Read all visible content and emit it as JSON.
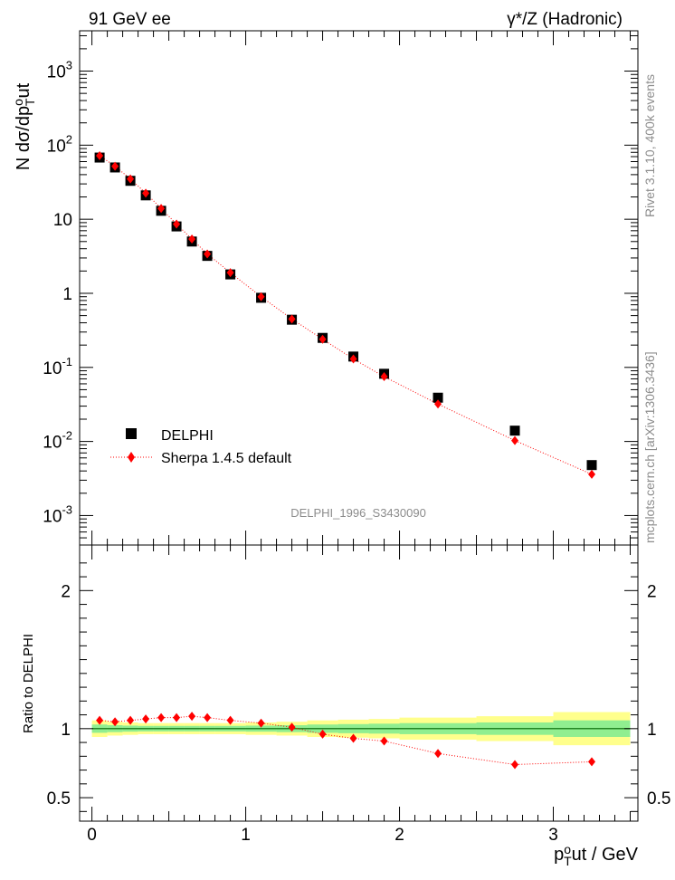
{
  "header": {
    "left": "91 GeV ee",
    "right": "γ*/Z (Hadronic)"
  },
  "side_text": {
    "rivet": "Rivet 3.1.10,  400k events",
    "mcplots": "mcplots.cern.ch [arXiv:1306.3436]"
  },
  "watermark": "DELPHI_1996_S3430090",
  "colors": {
    "data_marker": "#000000",
    "mc_line": "#ff0000",
    "mc_marker": "#ff0000",
    "band_inner": "#90ee90",
    "band_outer": "#ffff8c"
  },
  "chart_data": [
    {
      "type": "scatter",
      "panel": "main",
      "ylabel": "N dσ/dp_T^out",
      "yscale": "log",
      "ylim": [
        0.0004,
        3500
      ],
      "xlim": [
        -0.08,
        3.55
      ],
      "ytick_labels": [
        "10^-3",
        "10^-2",
        "10^-1",
        "1",
        "10",
        "10^2",
        "10^3"
      ],
      "legend_position": "lower-left",
      "series": [
        {
          "name": "DELPHI",
          "marker": "square",
          "x": [
            0.05,
            0.15,
            0.25,
            0.35,
            0.45,
            0.55,
            0.65,
            0.75,
            0.9,
            1.1,
            1.3,
            1.5,
            1.7,
            1.9,
            2.25,
            2.75,
            3.25
          ],
          "y": [
            68,
            50,
            33,
            21,
            13,
            8.0,
            5.0,
            3.2,
            1.8,
            0.87,
            0.44,
            0.25,
            0.14,
            0.082,
            0.039,
            0.014,
            0.0048
          ]
        },
        {
          "name": "Sherpa 1.4.5 default",
          "marker": "diamond",
          "line": "dotted",
          "x": [
            0.05,
            0.15,
            0.25,
            0.35,
            0.45,
            0.55,
            0.65,
            0.75,
            0.9,
            1.1,
            1.3,
            1.5,
            1.7,
            1.9,
            2.25,
            2.75,
            3.25
          ],
          "y": [
            72,
            52,
            35,
            22.5,
            14,
            8.6,
            5.4,
            3.4,
            1.9,
            0.9,
            0.45,
            0.24,
            0.13,
            0.075,
            0.032,
            0.0103,
            0.0036
          ]
        }
      ]
    },
    {
      "type": "line",
      "panel": "ratio",
      "ylabel": "Ratio to DELPHI",
      "xlabel": "p_T^out / GeV",
      "ylim": [
        0.33,
        2.33
      ],
      "xlim": [
        -0.08,
        3.55
      ],
      "ytick_labels": [
        "0.5",
        "1",
        "2"
      ],
      "xtick_labels": [
        "0",
        "1",
        "2",
        "3"
      ],
      "band_edges": [
        0,
        0.1,
        0.2,
        0.3,
        0.4,
        0.5,
        0.6,
        0.7,
        0.8,
        1.0,
        1.2,
        1.4,
        1.6,
        1.8,
        2.0,
        2.5,
        3.0,
        3.5
      ],
      "band_inner": [
        0.03,
        0.025,
        0.022,
        0.02,
        0.02,
        0.02,
        0.02,
        0.02,
        0.02,
        0.022,
        0.025,
        0.03,
        0.033,
        0.036,
        0.04,
        0.045,
        0.06,
        0.08
      ],
      "band_outer": [
        0.06,
        0.05,
        0.045,
        0.04,
        0.04,
        0.04,
        0.04,
        0.04,
        0.04,
        0.045,
        0.05,
        0.06,
        0.065,
        0.07,
        0.08,
        0.09,
        0.12,
        0.16
      ],
      "series": [
        {
          "name": "Sherpa 1.4.5 default",
          "x": [
            0.05,
            0.15,
            0.25,
            0.35,
            0.45,
            0.55,
            0.65,
            0.75,
            0.9,
            1.1,
            1.3,
            1.5,
            1.7,
            1.9,
            2.25,
            2.75,
            3.25
          ],
          "y": [
            1.06,
            1.05,
            1.06,
            1.07,
            1.08,
            1.08,
            1.09,
            1.08,
            1.06,
            1.04,
            1.01,
            0.96,
            0.93,
            0.91,
            0.82,
            0.74,
            0.76
          ],
          "yerr": [
            0.01,
            0.01,
            0.01,
            0.01,
            0.01,
            0.01,
            0.01,
            0.01,
            0.01,
            0.01,
            0.01,
            0.01,
            0.01,
            0.015,
            0.015,
            0.015,
            0.025
          ]
        }
      ]
    }
  ]
}
